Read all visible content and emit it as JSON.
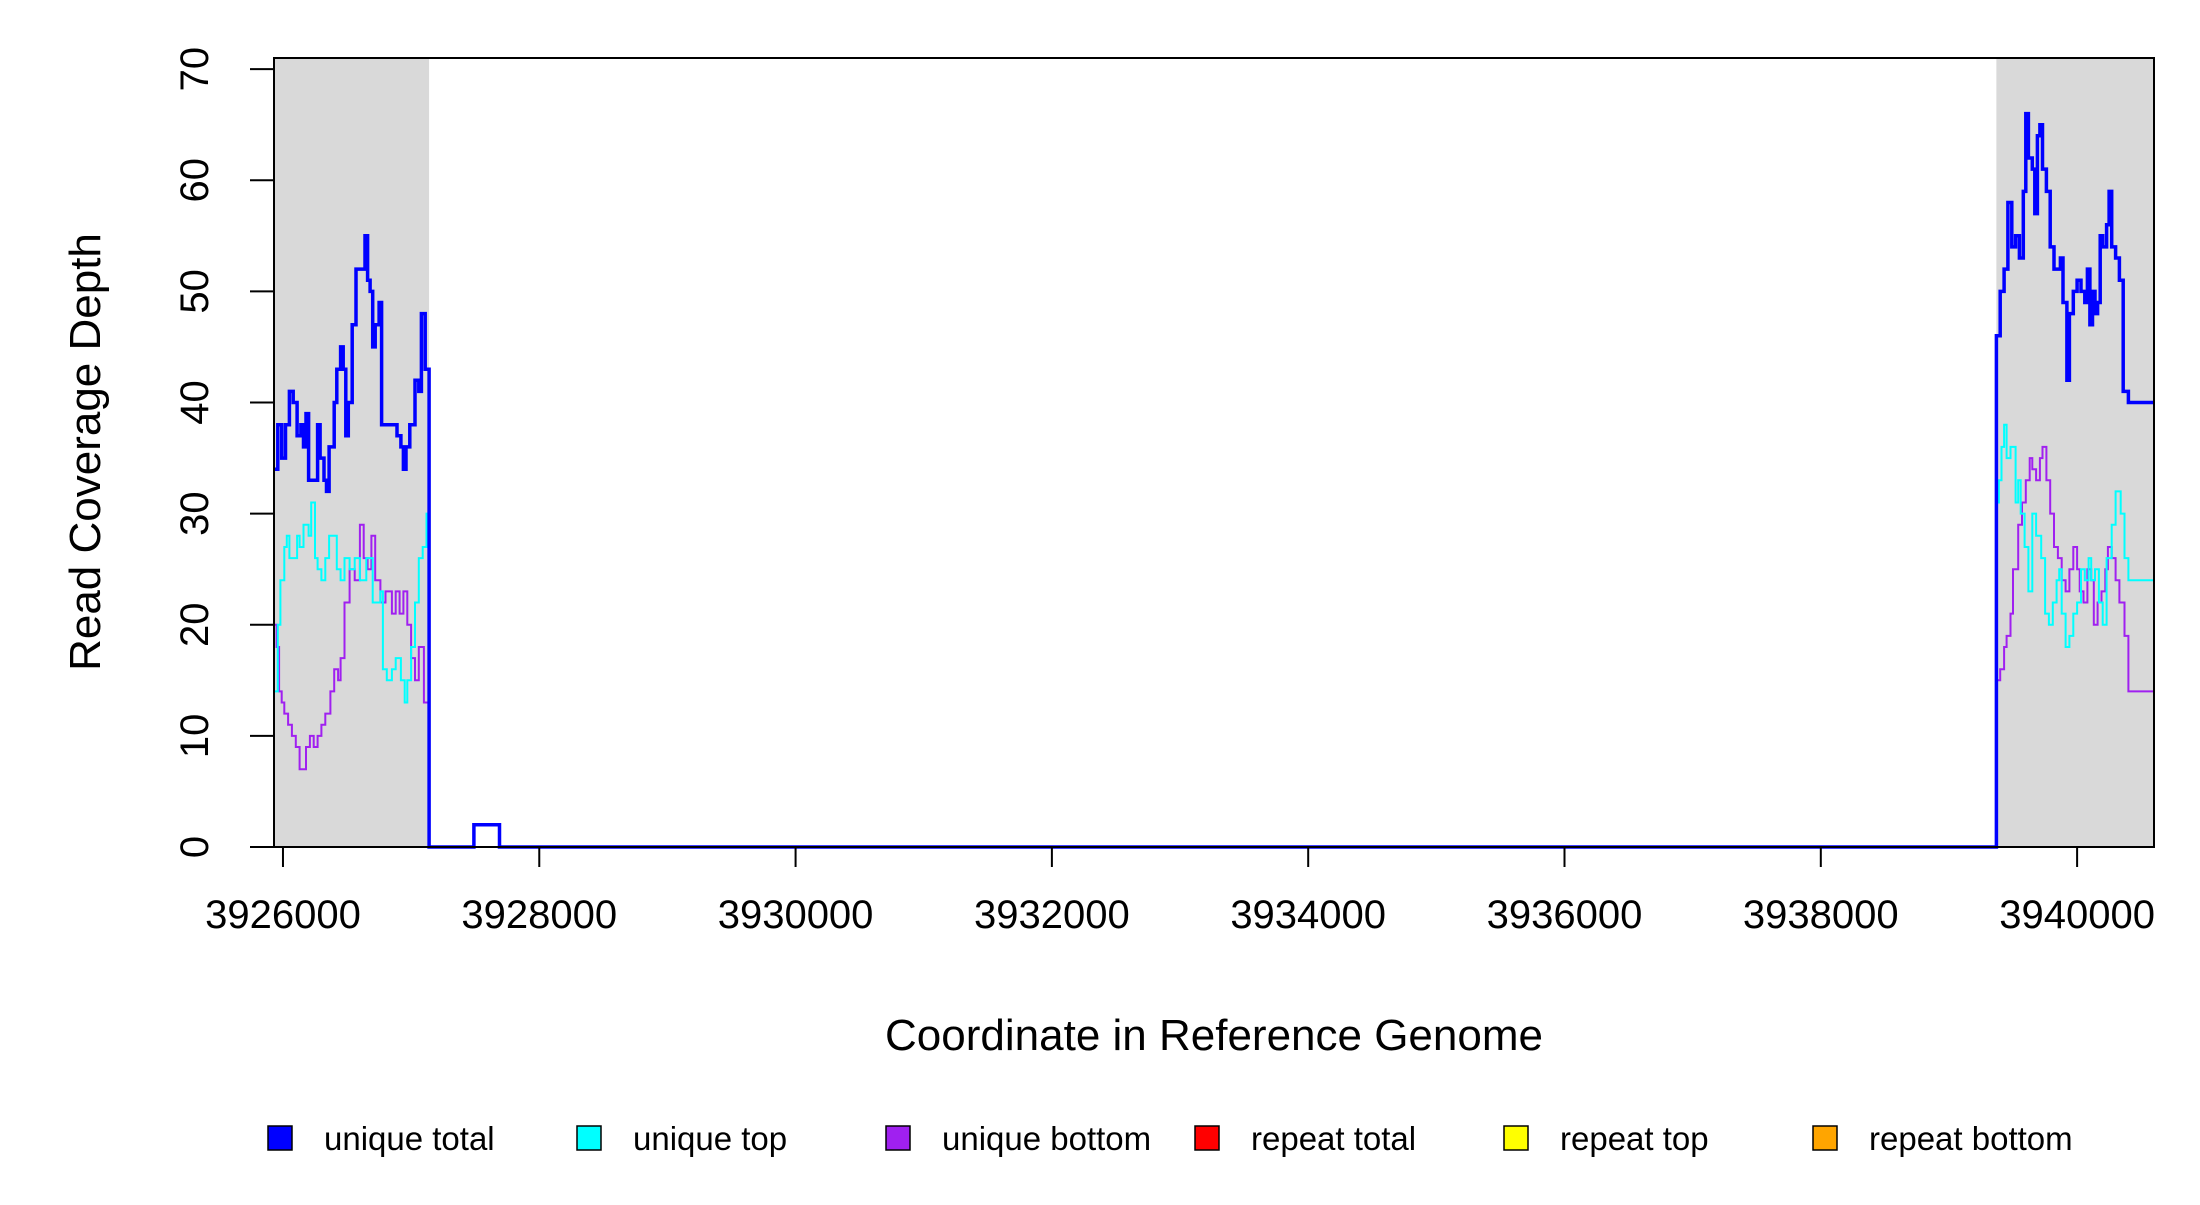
{
  "chart_data": {
    "type": "line",
    "title": "",
    "xlabel": "Coordinate in Reference Genome",
    "ylabel": "Read Coverage Depth",
    "xlim": [
      3925930,
      3940600
    ],
    "ylim": [
      0,
      71
    ],
    "x_ticks": [
      3926000,
      3928000,
      3930000,
      3932000,
      3934000,
      3936000,
      3938000,
      3940000
    ],
    "y_ticks": [
      0,
      10,
      20,
      30,
      40,
      50,
      60,
      70
    ],
    "shaded_regions": [
      [
        3925930,
        3927140
      ],
      [
        3939370,
        3940600
      ]
    ],
    "shade_color": "#d9d9d9",
    "grid": false,
    "legend_position": "bottom",
    "legend": [
      {
        "label": "unique total",
        "color": "#0000ff"
      },
      {
        "label": "unique top",
        "color": "#00ffff"
      },
      {
        "label": "unique bottom",
        "color": "#a020f0"
      },
      {
        "label": "repeat total",
        "color": "#ff0000"
      },
      {
        "label": "repeat top",
        "color": "#ffff00"
      },
      {
        "label": "repeat bottom",
        "color": "#ffa500"
      }
    ],
    "series": [
      {
        "name": "unique total",
        "color": "#0000ff",
        "points": [
          [
            3925930,
            34
          ],
          [
            3925960,
            38
          ],
          [
            3925990,
            35
          ],
          [
            3926020,
            38
          ],
          [
            3926050,
            41
          ],
          [
            3926080,
            40
          ],
          [
            3926110,
            37
          ],
          [
            3926140,
            38
          ],
          [
            3926160,
            36
          ],
          [
            3926180,
            39
          ],
          [
            3926200,
            33
          ],
          [
            3926240,
            33
          ],
          [
            3926270,
            38
          ],
          [
            3926290,
            35
          ],
          [
            3926320,
            33
          ],
          [
            3926340,
            32
          ],
          [
            3926360,
            36
          ],
          [
            3926400,
            40
          ],
          [
            3926420,
            43
          ],
          [
            3926450,
            45
          ],
          [
            3926470,
            43
          ],
          [
            3926490,
            37
          ],
          [
            3926510,
            40
          ],
          [
            3926540,
            47
          ],
          [
            3926570,
            52
          ],
          [
            3926610,
            52
          ],
          [
            3926640,
            55
          ],
          [
            3926660,
            51
          ],
          [
            3926680,
            50
          ],
          [
            3926700,
            45
          ],
          [
            3926720,
            47
          ],
          [
            3926750,
            49
          ],
          [
            3926770,
            38
          ],
          [
            3926850,
            38
          ],
          [
            3926890,
            37
          ],
          [
            3926920,
            36
          ],
          [
            3926940,
            34
          ],
          [
            3926960,
            36
          ],
          [
            3926990,
            38
          ],
          [
            3927030,
            42
          ],
          [
            3927060,
            41
          ],
          [
            3927080,
            48
          ],
          [
            3927110,
            43
          ],
          [
            3927140,
            0
          ],
          [
            3927480,
            0
          ],
          [
            3927490,
            2
          ],
          [
            3927680,
            2
          ],
          [
            3927690,
            0
          ],
          [
            3939360,
            0
          ],
          [
            3939370,
            46
          ],
          [
            3939400,
            50
          ],
          [
            3939430,
            52
          ],
          [
            3939460,
            58
          ],
          [
            3939490,
            54
          ],
          [
            3939520,
            55
          ],
          [
            3939550,
            53
          ],
          [
            3939580,
            59
          ],
          [
            3939600,
            66
          ],
          [
            3939620,
            62
          ],
          [
            3939650,
            61
          ],
          [
            3939670,
            57
          ],
          [
            3939690,
            64
          ],
          [
            3939710,
            65
          ],
          [
            3939730,
            61
          ],
          [
            3939760,
            59
          ],
          [
            3939790,
            54
          ],
          [
            3939820,
            52
          ],
          [
            3939850,
            52
          ],
          [
            3939870,
            53
          ],
          [
            3939890,
            49
          ],
          [
            3939920,
            42
          ],
          [
            3939940,
            48
          ],
          [
            3939970,
            50
          ],
          [
            3940000,
            51
          ],
          [
            3940030,
            50
          ],
          [
            3940060,
            49
          ],
          [
            3940080,
            52
          ],
          [
            3940100,
            47
          ],
          [
            3940120,
            50
          ],
          [
            3940140,
            48
          ],
          [
            3940160,
            49
          ],
          [
            3940180,
            55
          ],
          [
            3940200,
            54
          ],
          [
            3940230,
            56
          ],
          [
            3940250,
            59
          ],
          [
            3940270,
            54
          ],
          [
            3940300,
            53
          ],
          [
            3940330,
            51
          ],
          [
            3940360,
            41
          ],
          [
            3940400,
            40
          ],
          [
            3940600,
            40
          ]
        ]
      },
      {
        "name": "unique top",
        "color": "#00ffff",
        "points": [
          [
            3925930,
            14
          ],
          [
            3925960,
            20
          ],
          [
            3925980,
            24
          ],
          [
            3926010,
            27
          ],
          [
            3926030,
            28
          ],
          [
            3926050,
            26
          ],
          [
            3926110,
            28
          ],
          [
            3926130,
            27
          ],
          [
            3926160,
            29
          ],
          [
            3926200,
            28
          ],
          [
            3926220,
            31
          ],
          [
            3926250,
            26
          ],
          [
            3926270,
            25
          ],
          [
            3926300,
            24
          ],
          [
            3926330,
            26
          ],
          [
            3926360,
            28
          ],
          [
            3926420,
            25
          ],
          [
            3926450,
            24
          ],
          [
            3926480,
            26
          ],
          [
            3926520,
            25
          ],
          [
            3926560,
            26
          ],
          [
            3926600,
            24
          ],
          [
            3926650,
            26
          ],
          [
            3926700,
            22
          ],
          [
            3926760,
            23
          ],
          [
            3926780,
            16
          ],
          [
            3926810,
            15
          ],
          [
            3926850,
            16
          ],
          [
            3926880,
            17
          ],
          [
            3926920,
            15
          ],
          [
            3926950,
            13
          ],
          [
            3926970,
            15
          ],
          [
            3927000,
            18
          ],
          [
            3927030,
            22
          ],
          [
            3927060,
            26
          ],
          [
            3927090,
            27
          ],
          [
            3927120,
            30
          ],
          [
            3927140,
            0
          ],
          [
            3939360,
            0
          ],
          [
            3939370,
            31
          ],
          [
            3939390,
            33
          ],
          [
            3939410,
            36
          ],
          [
            3939430,
            38
          ],
          [
            3939450,
            35
          ],
          [
            3939480,
            36
          ],
          [
            3939520,
            31
          ],
          [
            3939540,
            33
          ],
          [
            3939560,
            30
          ],
          [
            3939590,
            27
          ],
          [
            3939620,
            23
          ],
          [
            3939650,
            30
          ],
          [
            3939680,
            28
          ],
          [
            3939720,
            26
          ],
          [
            3939750,
            21
          ],
          [
            3939780,
            20
          ],
          [
            3939810,
            22
          ],
          [
            3939840,
            24
          ],
          [
            3939860,
            25
          ],
          [
            3939880,
            21
          ],
          [
            3939910,
            18
          ],
          [
            3939940,
            19
          ],
          [
            3939970,
            21
          ],
          [
            3940000,
            22
          ],
          [
            3940030,
            25
          ],
          [
            3940060,
            24
          ],
          [
            3940090,
            26
          ],
          [
            3940110,
            24
          ],
          [
            3940140,
            25
          ],
          [
            3940170,
            22
          ],
          [
            3940200,
            20
          ],
          [
            3940230,
            26
          ],
          [
            3940270,
            29
          ],
          [
            3940300,
            32
          ],
          [
            3940340,
            30
          ],
          [
            3940370,
            26
          ],
          [
            3940400,
            24
          ],
          [
            3940600,
            24
          ]
        ]
      },
      {
        "name": "unique bottom",
        "color": "#a020f0",
        "points": [
          [
            3925930,
            20
          ],
          [
            3925950,
            18
          ],
          [
            3925970,
            14
          ],
          [
            3925990,
            13
          ],
          [
            3926010,
            12
          ],
          [
            3926040,
            11
          ],
          [
            3926070,
            10
          ],
          [
            3926100,
            9
          ],
          [
            3926130,
            7
          ],
          [
            3926180,
            9
          ],
          [
            3926210,
            10
          ],
          [
            3926240,
            9
          ],
          [
            3926270,
            10
          ],
          [
            3926300,
            11
          ],
          [
            3926330,
            12
          ],
          [
            3926370,
            14
          ],
          [
            3926400,
            16
          ],
          [
            3926430,
            15
          ],
          [
            3926450,
            17
          ],
          [
            3926480,
            22
          ],
          [
            3926520,
            25
          ],
          [
            3926560,
            24
          ],
          [
            3926600,
            29
          ],
          [
            3926630,
            26
          ],
          [
            3926660,
            25
          ],
          [
            3926690,
            28
          ],
          [
            3926720,
            24
          ],
          [
            3926760,
            22
          ],
          [
            3926800,
            23
          ],
          [
            3926850,
            21
          ],
          [
            3926880,
            23
          ],
          [
            3926910,
            21
          ],
          [
            3926940,
            23
          ],
          [
            3926970,
            20
          ],
          [
            3927000,
            17
          ],
          [
            3927030,
            15
          ],
          [
            3927060,
            18
          ],
          [
            3927100,
            13
          ],
          [
            3927140,
            0
          ],
          [
            3939360,
            0
          ],
          [
            3939370,
            15
          ],
          [
            3939400,
            16
          ],
          [
            3939430,
            18
          ],
          [
            3939450,
            19
          ],
          [
            3939480,
            21
          ],
          [
            3939500,
            25
          ],
          [
            3939540,
            29
          ],
          [
            3939570,
            31
          ],
          [
            3939600,
            33
          ],
          [
            3939630,
            35
          ],
          [
            3939650,
            34
          ],
          [
            3939680,
            33
          ],
          [
            3939710,
            35
          ],
          [
            3939730,
            36
          ],
          [
            3939760,
            33
          ],
          [
            3939790,
            30
          ],
          [
            3939820,
            27
          ],
          [
            3939850,
            26
          ],
          [
            3939880,
            24
          ],
          [
            3939910,
            23
          ],
          [
            3939940,
            25
          ],
          [
            3939970,
            27
          ],
          [
            3940000,
            25
          ],
          [
            3940020,
            23
          ],
          [
            3940050,
            22
          ],
          [
            3940080,
            25
          ],
          [
            3940110,
            24
          ],
          [
            3940130,
            20
          ],
          [
            3940160,
            22
          ],
          [
            3940190,
            23
          ],
          [
            3940220,
            25
          ],
          [
            3940240,
            27
          ],
          [
            3940270,
            26
          ],
          [
            3940300,
            24
          ],
          [
            3940330,
            22
          ],
          [
            3940370,
            19
          ],
          [
            3940400,
            14
          ],
          [
            3940600,
            14
          ]
        ]
      },
      {
        "name": "repeat total",
        "color": "#ff0000",
        "points": [
          [
            3925930,
            0
          ],
          [
            3940600,
            0
          ]
        ]
      },
      {
        "name": "repeat top",
        "color": "#ffff00",
        "points": [
          [
            3925930,
            0
          ],
          [
            3940600,
            0
          ]
        ]
      },
      {
        "name": "repeat bottom",
        "color": "#ffa500",
        "points": [
          [
            3925930,
            0
          ],
          [
            3940600,
            0
          ]
        ]
      }
    ]
  }
}
